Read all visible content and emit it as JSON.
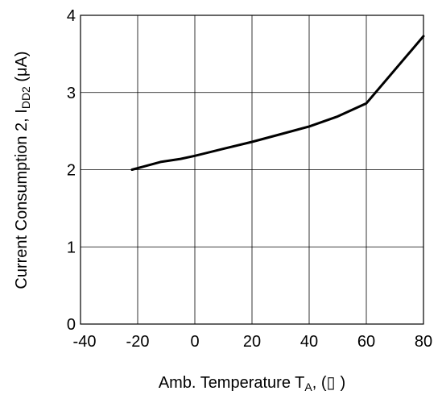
{
  "chart_data": {
    "type": "line",
    "xlabel": {
      "main": "Amb. Temperature T",
      "sub": "A",
      "suffix": ", (",
      "unit_glyph": "▯",
      "close": ")"
    },
    "ylabel": {
      "main": "Current Consumption 2, I",
      "sub": "DD2",
      "unit": " (μA)"
    },
    "xlim": [
      -40,
      80
    ],
    "ylim": [
      0,
      4
    ],
    "xticks": [
      -40,
      -20,
      0,
      20,
      40,
      60,
      80
    ],
    "xtick_labels": [
      "-40",
      "-20",
      "0",
      "20",
      "40",
      "60",
      "80"
    ],
    "yticks": [
      0,
      1,
      2,
      3,
      4
    ],
    "ytick_labels": [
      "0",
      "1",
      "2",
      "3",
      "4"
    ],
    "grid": true,
    "series": [
      {
        "color": "#000000",
        "x": [
          -22,
          -18,
          -12,
          -5,
          0,
          10,
          20,
          30,
          40,
          50,
          60,
          80
        ],
        "y": [
          2.0,
          2.04,
          2.1,
          2.14,
          2.18,
          2.27,
          2.36,
          2.46,
          2.56,
          2.69,
          2.86,
          3.73
        ]
      }
    ]
  }
}
